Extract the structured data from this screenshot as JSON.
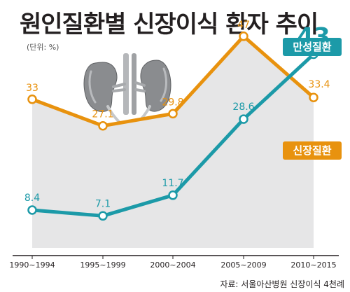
{
  "chart_data": {
    "type": "line",
    "title": "원인질환별 신장이식 환자 추이",
    "unit": "(단위: %)",
    "categories": [
      "1990~1994",
      "1995~1999",
      "2000~2004",
      "2005~2009",
      "2010~2015"
    ],
    "series": [
      {
        "name": "신장질환",
        "color": "#e8920e",
        "values": [
          33,
          27.1,
          29.8,
          47,
          33.4
        ],
        "labels": [
          "33",
          "27.1",
          "29.8",
          "47",
          "33.4"
        ]
      },
      {
        "name": "만성질환",
        "color": "#1c9aa8",
        "values": [
          8.4,
          7.1,
          11.7,
          28.6,
          43
        ],
        "labels": [
          "8.4",
          "7.1",
          "11.7",
          "28.6",
          "43"
        ]
      }
    ],
    "ylim": [
      0,
      52
    ],
    "grid": false,
    "source": "자료: 서울아산병원 신장이식 4천례",
    "colors": {
      "area_fill": "#e6e6e7",
      "axis": "#231f20"
    }
  }
}
